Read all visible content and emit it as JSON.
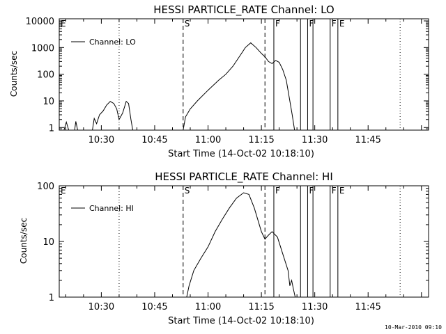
{
  "timestamp": "10-Mar-2010 09:10",
  "chart_data": [
    {
      "type": "line",
      "title": "HESSI PARTICLE_RATE Channel: LO",
      "xlabel": "Start Time (14-Oct-02 10:18:10)",
      "ylabel": "Counts/sec",
      "yscale": "log",
      "xlim": [
        "10:18:10",
        "12:02:00"
      ],
      "ylim": [
        0.8,
        12000
      ],
      "x_ticks": [
        "10:30",
        "10:45",
        "11:00",
        "11:15",
        "11:30",
        "11:45"
      ],
      "y_ticks": [
        "1",
        "10",
        "100",
        "1000",
        "10000"
      ],
      "legend": "Channel: LO",
      "legend_position": "top-left",
      "markers": [
        {
          "label": "E",
          "time": "10:18:10",
          "style": "solid"
        },
        {
          "label": "",
          "time": "10:35:00",
          "style": "dotted"
        },
        {
          "label": "S",
          "time": "10:53:00",
          "style": "dashed"
        },
        {
          "label": "",
          "time": "11:16:00",
          "style": "dashed"
        },
        {
          "label": "F",
          "time": "11:18:30",
          "style": "solid"
        },
        {
          "label": "",
          "time": "11:26:00",
          "style": "solid"
        },
        {
          "label": "F",
          "time": "11:28:00",
          "style": "solid"
        },
        {
          "label": "",
          "time": "11:29:30",
          "style": "solid"
        },
        {
          "label": "F",
          "time": "11:34:20",
          "style": "solid"
        },
        {
          "label": "E",
          "time": "11:36:30",
          "style": "solid"
        },
        {
          "label": "",
          "time": "11:54:00",
          "style": "dotted"
        }
      ],
      "series": [
        {
          "name": "Channel: LO",
          "points": [
            [
              "10:19:30",
              0.8
            ],
            [
              "10:20:10",
              1.6
            ],
            [
              "10:20:50",
              0.8
            ],
            [
              "10:22:30",
              0.8
            ],
            [
              "10:22:50",
              1.7
            ],
            [
              "10:23:20",
              0.8
            ],
            [
              "10:27:30",
              0.8
            ],
            [
              "10:28:00",
              2.2
            ],
            [
              "10:28:40",
              1.4
            ],
            [
              "10:29:30",
              3
            ],
            [
              "10:30:30",
              4.2
            ],
            [
              "10:31:30",
              7
            ],
            [
              "10:32:30",
              9.5
            ],
            [
              "10:33:30",
              8
            ],
            [
              "10:34:20",
              5
            ],
            [
              "10:35:00",
              2
            ],
            [
              "10:36:00",
              3.5
            ],
            [
              "10:37:00",
              9.5
            ],
            [
              "10:37:40",
              8
            ],
            [
              "10:38:20",
              2
            ],
            [
              "10:38:50",
              0.8
            ],
            [
              "10:53:00",
              0.8
            ],
            [
              "10:53:40",
              2.5
            ],
            [
              "10:55:00",
              5
            ],
            [
              "10:57:00",
              10
            ],
            [
              "11:00:00",
              25
            ],
            [
              "11:03:00",
              60
            ],
            [
              "11:05:00",
              100
            ],
            [
              "11:07:00",
              200
            ],
            [
              "11:09:00",
              500
            ],
            [
              "11:10:30",
              1000
            ],
            [
              "11:12:00",
              1500
            ],
            [
              "11:13:30",
              1000
            ],
            [
              "11:15:00",
              600
            ],
            [
              "11:16:00",
              450
            ],
            [
              "11:17:00",
              300
            ],
            [
              "11:18:00",
              250
            ],
            [
              "11:19:00",
              330
            ],
            [
              "11:20:00",
              280
            ],
            [
              "11:21:00",
              150
            ],
            [
              "11:22:00",
              60
            ],
            [
              "11:23:00",
              10
            ],
            [
              "11:23:40",
              3
            ],
            [
              "11:24:20",
              0.8
            ]
          ]
        }
      ]
    },
    {
      "type": "line",
      "title": "HESSI PARTICLE_RATE Channel: HI",
      "xlabel": "Start Time (14-Oct-02 10:18:10)",
      "ylabel": "Counts/sec",
      "yscale": "log",
      "xlim": [
        "10:18:10",
        "12:02:00"
      ],
      "ylim": [
        1,
        100
      ],
      "x_ticks": [
        "10:30",
        "10:45",
        "11:00",
        "11:15",
        "11:30",
        "11:45"
      ],
      "y_ticks": [
        "1",
        "10",
        "100"
      ],
      "legend": "Channel: HI",
      "legend_position": "top-left",
      "markers": [
        {
          "label": "E",
          "time": "10:18:10",
          "style": "solid"
        },
        {
          "label": "",
          "time": "10:35:00",
          "style": "dotted"
        },
        {
          "label": "S",
          "time": "10:53:00",
          "style": "dashed"
        },
        {
          "label": "",
          "time": "11:16:00",
          "style": "dashed"
        },
        {
          "label": "F",
          "time": "11:18:30",
          "style": "solid"
        },
        {
          "label": "",
          "time": "11:26:00",
          "style": "solid"
        },
        {
          "label": "F",
          "time": "11:28:00",
          "style": "solid"
        },
        {
          "label": "",
          "time": "11:29:30",
          "style": "solid"
        },
        {
          "label": "F",
          "time": "11:34:20",
          "style": "solid"
        },
        {
          "label": "E",
          "time": "11:36:30",
          "style": "solid"
        },
        {
          "label": "",
          "time": "11:54:00",
          "style": "dotted"
        }
      ],
      "series": [
        {
          "name": "Channel: HI",
          "points": [
            [
              "10:54:00",
              1
            ],
            [
              "10:54:40",
              1.6
            ],
            [
              "10:56:00",
              3
            ],
            [
              "10:58:00",
              5
            ],
            [
              "11:00:00",
              8
            ],
            [
              "11:02:00",
              15
            ],
            [
              "11:04:00",
              25
            ],
            [
              "11:06:00",
              40
            ],
            [
              "11:08:00",
              60
            ],
            [
              "11:10:00",
              75
            ],
            [
              "11:11:30",
              70
            ],
            [
              "11:13:00",
              40
            ],
            [
              "11:15:00",
              15
            ],
            [
              "11:16:00",
              11
            ],
            [
              "11:17:00",
              13
            ],
            [
              "11:18:00",
              15
            ],
            [
              "11:19:30",
              12
            ],
            [
              "11:21:00",
              6
            ],
            [
              "11:22:30",
              3
            ],
            [
              "11:23:00",
              1.6
            ],
            [
              "11:23:30",
              2
            ],
            [
              "11:24:00",
              1.4
            ],
            [
              "11:24:30",
              1
            ]
          ]
        }
      ]
    }
  ]
}
